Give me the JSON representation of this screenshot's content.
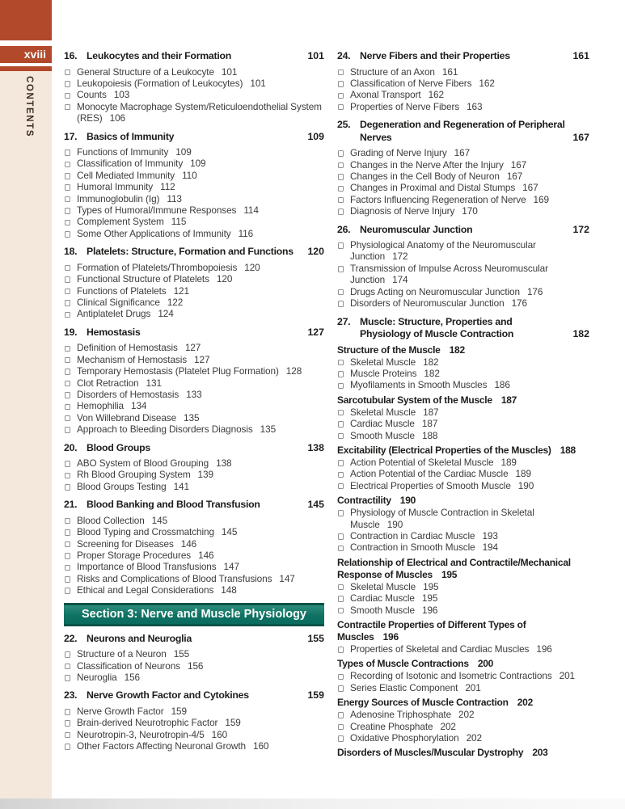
{
  "theme": {
    "accent_red": "#b1492a",
    "cream": "#f4e7dc",
    "teal": "#0e7263",
    "teal_dark": "#0b5347"
  },
  "page": {
    "folio": "xviii",
    "sidebar_label": "CONTENTS"
  },
  "columns": [
    {
      "blocks": [
        {
          "type": "chapter",
          "num": "16.",
          "title": "Leukocytes and their Formation",
          "page": "101",
          "entries": [
            {
              "kind": "item",
              "t": "General Structure of a Leukocyte",
              "p": "101"
            },
            {
              "kind": "item",
              "t": "Leukopoiesis (Formation of Leukocytes)",
              "p": "101"
            },
            {
              "kind": "item",
              "t": "Counts",
              "p": "103"
            },
            {
              "kind": "item",
              "t": "Monocyte Macrophage System/Reticuloendothelial System (RES)",
              "p": "106"
            }
          ]
        },
        {
          "type": "chapter",
          "num": "17.",
          "title": "Basics of Immunity",
          "page": "109",
          "entries": [
            {
              "kind": "item",
              "t": "Functions of Immunity",
              "p": "109"
            },
            {
              "kind": "item",
              "t": "Classification of Immunity",
              "p": "109"
            },
            {
              "kind": "item",
              "t": "Cell Mediated Immunity",
              "p": "110"
            },
            {
              "kind": "item",
              "t": "Humoral Immunity",
              "p": "112"
            },
            {
              "kind": "item",
              "t": "Immunoglobulin (Ig)",
              "p": "113"
            },
            {
              "kind": "item",
              "t": "Types of Humoral/Immune Responses",
              "p": "114"
            },
            {
              "kind": "item",
              "t": "Complement System",
              "p": "115"
            },
            {
              "kind": "item",
              "t": "Some Other Applications of Immunity",
              "p": "116"
            }
          ]
        },
        {
          "type": "chapter",
          "num": "18.",
          "title": "Platelets: Structure, Formation and Functions",
          "page": "120",
          "entries": [
            {
              "kind": "item",
              "t": "Formation of Platelets/Thrombopoiesis",
              "p": "120"
            },
            {
              "kind": "item",
              "t": "Functional Structure of Platelets",
              "p": "120"
            },
            {
              "kind": "item",
              "t": "Functions of Platelets",
              "p": "121"
            },
            {
              "kind": "item",
              "t": "Clinical Significance",
              "p": "122"
            },
            {
              "kind": "item",
              "t": "Antiplatelet Drugs",
              "p": "124"
            }
          ]
        },
        {
          "type": "chapter",
          "num": "19.",
          "title": "Hemostasis",
          "page": "127",
          "entries": [
            {
              "kind": "item",
              "t": "Definition of Hemostasis",
              "p": "127"
            },
            {
              "kind": "item",
              "t": "Mechanism of Hemostasis",
              "p": "127"
            },
            {
              "kind": "item",
              "t": "Temporary Hemostasis (Platelet Plug Formation)",
              "p": "128"
            },
            {
              "kind": "item",
              "t": "Clot Retraction",
              "p": "131"
            },
            {
              "kind": "item",
              "t": "Disorders of Hemostasis",
              "p": "133"
            },
            {
              "kind": "item",
              "t": "Hemophilia",
              "p": "134"
            },
            {
              "kind": "item",
              "t": "Von Willebrand Disease",
              "p": "135"
            },
            {
              "kind": "item",
              "t": "Approach to Bleeding Disorders Diagnosis",
              "p": "135"
            }
          ]
        },
        {
          "type": "chapter",
          "num": "20.",
          "title": "Blood Groups",
          "page": "138",
          "entries": [
            {
              "kind": "item",
              "t": "ABO System of Blood Grouping",
              "p": "138"
            },
            {
              "kind": "item",
              "t": "Rh Blood Grouping System",
              "p": "139"
            },
            {
              "kind": "item",
              "t": "Blood Groups Testing",
              "p": "141"
            }
          ]
        },
        {
          "type": "chapter",
          "num": "21.",
          "title": "Blood Banking and Blood Transfusion",
          "page": "145",
          "entries": [
            {
              "kind": "item",
              "t": "Blood Collection",
              "p": "145"
            },
            {
              "kind": "item",
              "t": "Blood Typing and Crossmatching",
              "p": "145"
            },
            {
              "kind": "item",
              "t": "Screening for Diseases",
              "p": "146"
            },
            {
              "kind": "item",
              "t": "Proper Storage Procedures",
              "p": "146"
            },
            {
              "kind": "item",
              "t": "Importance of Blood Transfusions",
              "p": "147"
            },
            {
              "kind": "item",
              "t": "Risks and Complications of Blood Transfusions",
              "p": "147"
            },
            {
              "kind": "item",
              "t": "Ethical and Legal Considerations",
              "p": "148"
            }
          ]
        },
        {
          "type": "section",
          "label": "Section 3: Nerve and Muscle Physiology"
        },
        {
          "type": "chapter",
          "num": "22.",
          "title": "Neurons and Neuroglia",
          "page": "155",
          "entries": [
            {
              "kind": "item",
              "t": "Structure of a Neuron",
              "p": "155"
            },
            {
              "kind": "item",
              "t": "Classification of Neurons",
              "p": "156"
            },
            {
              "kind": "item",
              "t": "Neuroglia",
              "p": "156"
            }
          ]
        },
        {
          "type": "chapter",
          "num": "23.",
          "title": "Nerve Growth Factor and Cytokines",
          "page": "159",
          "entries": [
            {
              "kind": "item",
              "t": "Nerve Growth Factor",
              "p": "159"
            },
            {
              "kind": "item",
              "t": "Brain-derived Neurotrophic Factor",
              "p": "159"
            },
            {
              "kind": "item",
              "t": "Neurotropin-3, Neurotropin-4/5",
              "p": "160"
            },
            {
              "kind": "item",
              "t": "Other Factors Affecting Neuronal Growth",
              "p": "160"
            }
          ]
        }
      ]
    },
    {
      "blocks": [
        {
          "type": "chapter",
          "num": "24.",
          "title": "Nerve Fibers and their Properties",
          "page": "161",
          "entries": [
            {
              "kind": "item",
              "t": "Structure of an Axon",
              "p": "161"
            },
            {
              "kind": "item",
              "t": "Classification of Nerve Fibers",
              "p": "162"
            },
            {
              "kind": "item",
              "t": "Axonal Transport",
              "p": "162"
            },
            {
              "kind": "item",
              "t": "Properties of Nerve Fibers",
              "p": "163"
            }
          ]
        },
        {
          "type": "chapter",
          "num": "25.",
          "title": "Degeneration and Regeneration of Peripheral Nerves",
          "page": "167",
          "entries": [
            {
              "kind": "item",
              "t": "Grading of Nerve Injury",
              "p": "167"
            },
            {
              "kind": "item",
              "t": "Changes in the Nerve After the Injury",
              "p": "167"
            },
            {
              "kind": "item",
              "t": "Changes in the Cell Body of Neuron",
              "p": "167"
            },
            {
              "kind": "item",
              "t": "Changes in Proximal and Distal Stumps",
              "p": "167"
            },
            {
              "kind": "item",
              "t": "Factors Influencing Regeneration of Nerve",
              "p": "169"
            },
            {
              "kind": "item",
              "t": "Diagnosis of Nerve Injury",
              "p": "170"
            }
          ]
        },
        {
          "type": "chapter",
          "num": "26.",
          "title": "Neuromuscular Junction",
          "page": "172",
          "entries": [
            {
              "kind": "item",
              "t": "Physiological Anatomy of the Neuromuscular Junction",
              "p": "172"
            },
            {
              "kind": "item",
              "t": "Transmission of Impulse Across Neuromuscular Junction",
              "p": "174"
            },
            {
              "kind": "item",
              "t": "Drugs Acting on Neuromuscular Junction",
              "p": "176"
            },
            {
              "kind": "item",
              "t": "Disorders of Neuromuscular Junction",
              "p": "176"
            }
          ]
        },
        {
          "type": "chapter",
          "num": "27.",
          "title": "Muscle: Structure, Properties and Physiology of Muscle Contraction",
          "page": "182",
          "entries": [
            {
              "kind": "subhead",
              "t": "Structure of the Muscle",
              "p": "182"
            },
            {
              "kind": "item",
              "t": "Skeletal Muscle",
              "p": "182"
            },
            {
              "kind": "item",
              "t": "Muscle Proteins",
              "p": "182"
            },
            {
              "kind": "item",
              "t": "Myofilaments in Smooth Muscles",
              "p": "186"
            },
            {
              "kind": "subhead",
              "t": "Sarcotubular System of the Muscle",
              "p": "187"
            },
            {
              "kind": "item",
              "t": "Skeletal Muscle",
              "p": "187"
            },
            {
              "kind": "item",
              "t": "Cardiac Muscle",
              "p": "187"
            },
            {
              "kind": "item",
              "t": "Smooth Muscle",
              "p": "188"
            },
            {
              "kind": "subhead",
              "t": "Excitability (Electrical Properties of the Muscles)",
              "p": "188"
            },
            {
              "kind": "item",
              "t": "Action Potential of Skeletal Muscle",
              "p": "189"
            },
            {
              "kind": "item",
              "t": "Action Potential of the Cardiac Muscle",
              "p": "189"
            },
            {
              "kind": "item",
              "t": "Electrical Properties of Smooth Muscle",
              "p": "190"
            },
            {
              "kind": "subhead",
              "t": "Contractility",
              "p": "190"
            },
            {
              "kind": "item",
              "t": "Physiology of Muscle Contraction in Skeletal Muscle",
              "p": "190"
            },
            {
              "kind": "item",
              "t": "Contraction in Cardiac Muscle",
              "p": "193"
            },
            {
              "kind": "item",
              "t": "Contraction in Smooth Muscle",
              "p": "194"
            },
            {
              "kind": "subhead",
              "t": "Relationship of Electrical and Contractile/Mechanical Response of Muscles",
              "p": "195"
            },
            {
              "kind": "item",
              "t": "Skeletal Muscle",
              "p": "195"
            },
            {
              "kind": "item",
              "t": "Cardiac Muscle",
              "p": "195"
            },
            {
              "kind": "item",
              "t": "Smooth Muscle",
              "p": "196"
            },
            {
              "kind": "subhead",
              "t": "Contractile Properties of Different Types of Muscles",
              "p": "196"
            },
            {
              "kind": "item",
              "t": "Properties of Skeletal and Cardiac Muscles",
              "p": "196"
            },
            {
              "kind": "subhead",
              "t": "Types of Muscle Contractions",
              "p": "200"
            },
            {
              "kind": "item",
              "t": "Recording of Isotonic and Isometric Contractions",
              "p": "201"
            },
            {
              "kind": "item",
              "t": "Series Elastic Component",
              "p": "201"
            },
            {
              "kind": "subhead",
              "t": "Energy Sources of Muscle Contraction",
              "p": "202"
            },
            {
              "kind": "item",
              "t": "Adenosine Triphosphate",
              "p": "202"
            },
            {
              "kind": "item",
              "t": "Creatine Phosphate",
              "p": "202"
            },
            {
              "kind": "item",
              "t": "Oxidative Phosphorylation",
              "p": "202"
            },
            {
              "kind": "subhead",
              "t": "Disorders of Muscles/Muscular Dystrophy",
              "p": "203"
            }
          ]
        }
      ]
    }
  ]
}
